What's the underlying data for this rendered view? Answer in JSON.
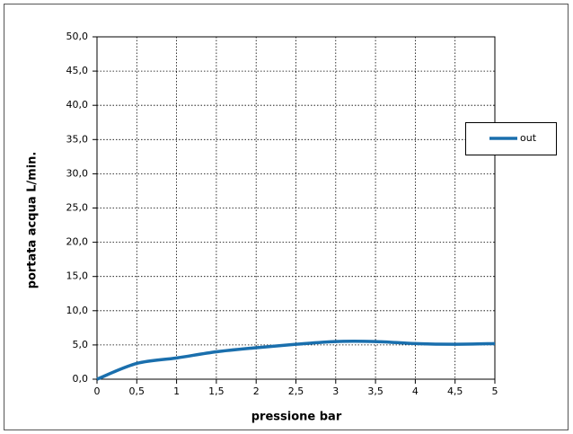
{
  "chart_data": {
    "type": "line",
    "xlabel": "pressione bar",
    "ylabel": "portata acqua L/min.",
    "x": [
      0,
      0.5,
      1,
      1.5,
      2,
      2.5,
      3,
      3.5,
      4,
      4.5,
      5
    ],
    "series": [
      {
        "name": "out",
        "color": "#1a6fad",
        "values": [
          0,
          2.3,
          3.1,
          4.0,
          4.6,
          5.1,
          5.5,
          5.5,
          5.2,
          5.1,
          5.2
        ]
      }
    ],
    "xlim": [
      0,
      5
    ],
    "xticks": [
      0,
      {
        "value": 0.5,
        "label": "0,5"
      },
      1,
      {
        "value": 1.5,
        "label": "1,5"
      },
      2,
      {
        "value": 2.5,
        "label": "2,5"
      },
      3,
      {
        "value": 3.5,
        "label": "3,5"
      },
      4,
      {
        "value": 4.5,
        "label": "4,5"
      },
      5
    ],
    "ylim": [
      0,
      50
    ],
    "yticks": [
      {
        "value": 0,
        "label": "0,0"
      },
      {
        "value": 5,
        "label": "5,0"
      },
      {
        "value": 10,
        "label": "10,0"
      },
      {
        "value": 15,
        "label": "15,0"
      },
      {
        "value": 20,
        "label": "20,0"
      },
      {
        "value": 25,
        "label": "25,0"
      },
      {
        "value": 30,
        "label": "30,0"
      },
      {
        "value": 35,
        "label": "35,0"
      },
      {
        "value": 40,
        "label": "40,0"
      },
      {
        "value": 45,
        "label": "45,0"
      },
      {
        "value": 50,
        "label": "50,0"
      }
    ],
    "grid": true,
    "legend": "right"
  }
}
